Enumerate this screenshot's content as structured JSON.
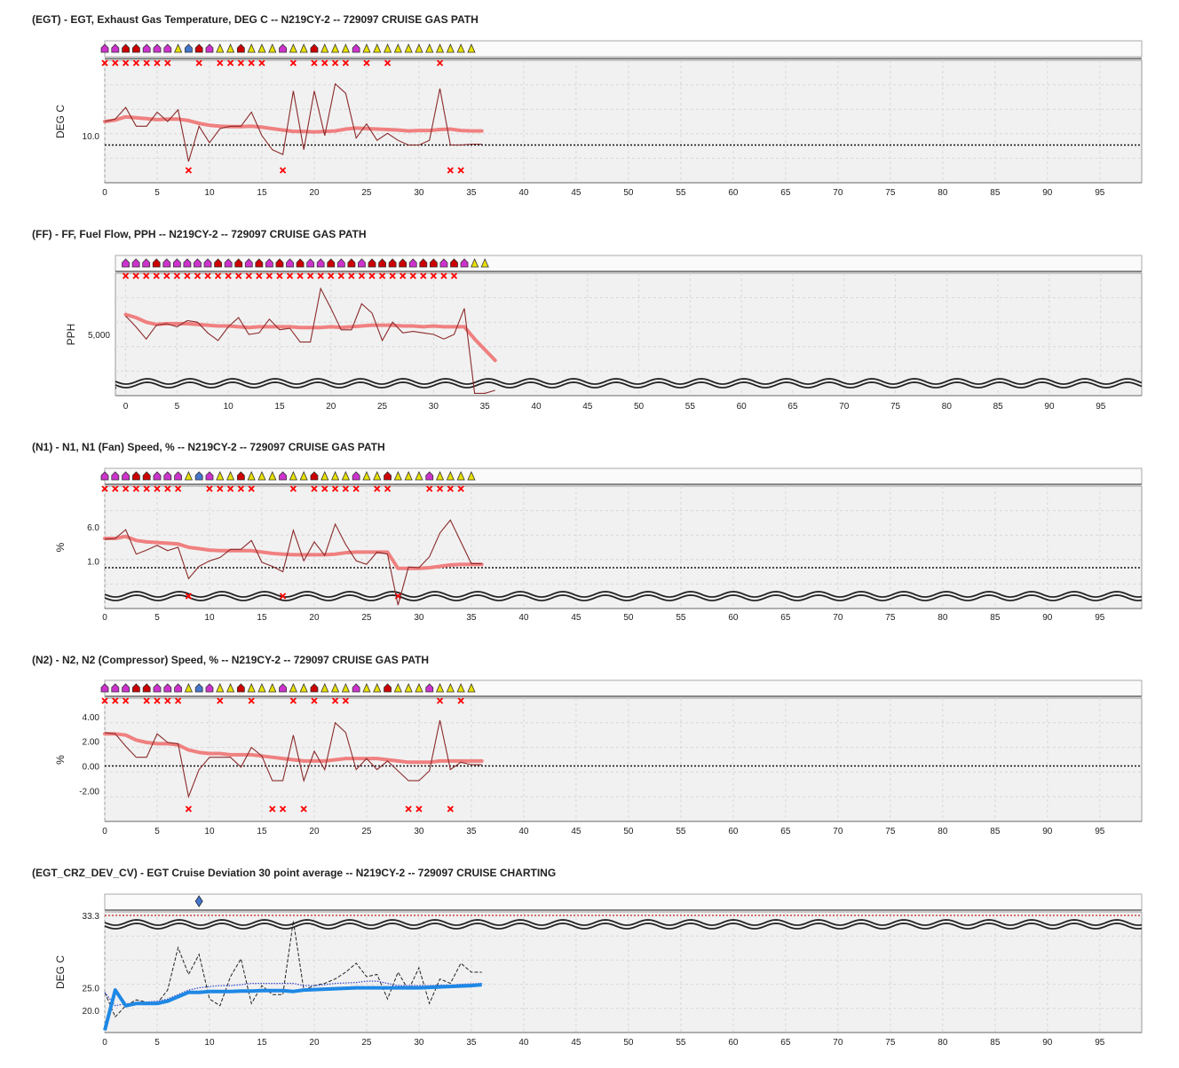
{
  "colors": {
    "trend": "#f08080",
    "raw": "#8b2a2a",
    "flag": "#ff0000",
    "dev_avg": "#1e88e5",
    "dev_dash": "#222222",
    "dev_dot": "#3344cc",
    "grid": "#d8d8d8",
    "plot_bg": "#f1f1f1",
    "marker_magenta": "#cc33cc",
    "marker_red": "#cc0000",
    "marker_yellow": "#e8e000",
    "marker_blue": "#4477cc",
    "marker_teal": "#4aa0a0"
  },
  "chart_data": [
    {
      "id": "egt",
      "type": "line",
      "title": "(EGT) - EGT, Exhaust Gas Temperature, DEG C -- N219CY-2 -- 729097 CRUISE GAS PATH",
      "ylabel": "DEG C",
      "yticks": [
        10.0
      ],
      "ytick_labels": [
        "10.0"
      ],
      "ylim": [
        0,
        26
      ],
      "xlim": [
        0,
        99
      ],
      "xticks": [
        0,
        5,
        10,
        15,
        20,
        25,
        30,
        35,
        40,
        45,
        50,
        55,
        60,
        65,
        70,
        75,
        80,
        85,
        90,
        95
      ],
      "baseline": 8,
      "grid": true,
      "break_bottom": false,
      "markers": [
        "m",
        "m",
        "r",
        "r",
        "m",
        "m",
        "m",
        "y",
        "b",
        "r",
        "m",
        "y",
        "y",
        "r",
        "y",
        "y",
        "y",
        "m",
        "y",
        "y",
        "r",
        "y",
        "y",
        "y",
        "m",
        "y",
        "y",
        "y",
        "y",
        "y",
        "y",
        "y",
        "y",
        "y",
        "y",
        "y"
      ],
      "flags_top": [
        0,
        1,
        2,
        3,
        4,
        5,
        6,
        9,
        11,
        12,
        13,
        14,
        15,
        18,
        20,
        21,
        22,
        23,
        25,
        27,
        32
      ],
      "flags_bottom": [
        8,
        17,
        33,
        34
      ],
      "raw": [
        13,
        13.5,
        16,
        12,
        12,
        15,
        13,
        15.5,
        4.5,
        12,
        8.5,
        11.5,
        12,
        12,
        15,
        10,
        7,
        6,
        19.5,
        7,
        19.5,
        10,
        21,
        19,
        9.5,
        12.5,
        9,
        10.5,
        9,
        8,
        8,
        9,
        20,
        8,
        8,
        8.2,
        8.2
      ],
      "trend": [
        13,
        13.3,
        14,
        13.8,
        13.6,
        13.4,
        13.5,
        13.5,
        13.2,
        12.6,
        12.2,
        12,
        11.9,
        11.9,
        12,
        11.8,
        11.5,
        11.2,
        10.9,
        10.9,
        10.8,
        10.9,
        11,
        11.4,
        11.6,
        11.5,
        11.4,
        11.3,
        11.2,
        11,
        11.1,
        11.1,
        11.3,
        11.4,
        11.1,
        11,
        11
      ]
    },
    {
      "id": "ff",
      "type": "line",
      "title": "(FF) - FF, Fuel Flow, PPH -- N219CY-2 -- 729097 CRUISE GAS PATH",
      "ylabel": "PPH",
      "yticks": [
        5000
      ],
      "ytick_labels": [
        "5,000"
      ],
      "ylim": [
        1000,
        9000
      ],
      "xlim": [
        -1,
        99
      ],
      "xticks": [
        0,
        5,
        10,
        15,
        20,
        25,
        30,
        35,
        40,
        45,
        50,
        55,
        60,
        65,
        70,
        75,
        80,
        85,
        90,
        95
      ],
      "baseline": 1500,
      "grid": true,
      "break_bottom": true,
      "markers": [
        "m",
        "m",
        "m",
        "r",
        "m",
        "m",
        "m",
        "m",
        "m",
        "r",
        "m",
        "r",
        "m",
        "r",
        "m",
        "r",
        "m",
        "r",
        "m",
        "m",
        "r",
        "m",
        "r",
        "m",
        "r",
        "r",
        "r",
        "r",
        "m",
        "r",
        "r",
        "m",
        "r",
        "m",
        "y",
        "y"
      ],
      "flags_top": [
        0,
        1,
        2,
        3,
        4,
        5,
        6,
        7,
        8,
        9,
        10,
        11,
        12,
        13,
        14,
        15,
        16,
        17,
        18,
        19,
        20,
        21,
        22,
        23,
        24,
        25,
        26,
        27,
        28,
        29,
        30,
        31,
        32
      ],
      "flags_bottom": [],
      "raw": [
        6200,
        5500,
        4700,
        5600,
        5700,
        5500,
        5900,
        5800,
        5100,
        4600,
        5500,
        6100,
        5000,
        5100,
        6000,
        5300,
        5400,
        4500,
        4500,
        8000,
        6700,
        5300,
        5300,
        7000,
        6400,
        4600,
        5800,
        5100,
        5200,
        5100,
        5000,
        4700,
        5000,
        6700,
        1150,
        1150,
        1350
      ],
      "trend": [
        6300,
        6100,
        5800,
        5650,
        5700,
        5700,
        5700,
        5650,
        5600,
        5550,
        5550,
        5500,
        5450,
        5500,
        5500,
        5500,
        5500,
        5450,
        5450,
        5450,
        5500,
        5450,
        5500,
        5550,
        5600,
        5600,
        5600,
        5550,
        5550,
        5500,
        5550,
        5500,
        5500,
        5500,
        4700,
        4000,
        3300
      ]
    },
    {
      "id": "n1",
      "type": "line",
      "title": "(N1) - N1, N1 (Fan) Speed, % -- N219CY-2 -- 729097 CRUISE GAS PATH",
      "ylabel": "%",
      "yticks": [
        1.0,
        6.0
      ],
      "ytick_labels": [
        "1.0",
        "6.0"
      ],
      "ylim": [
        -6,
        12
      ],
      "xlim": [
        0,
        99
      ],
      "xticks": [
        0,
        5,
        10,
        15,
        20,
        25,
        30,
        35,
        40,
        45,
        50,
        55,
        60,
        65,
        70,
        75,
        80,
        85,
        90,
        95
      ],
      "baseline": 0,
      "grid": true,
      "break_bottom": true,
      "markers": [
        "m",
        "m",
        "m",
        "r",
        "r",
        "m",
        "m",
        "m",
        "y",
        "b",
        "m",
        "y",
        "y",
        "r",
        "y",
        "y",
        "y",
        "m",
        "y",
        "y",
        "r",
        "y",
        "y",
        "y",
        "m",
        "y",
        "y",
        "r",
        "y",
        "y",
        "y",
        "m",
        "y",
        "y",
        "y",
        "y"
      ],
      "flags_top": [
        0,
        1,
        2,
        3,
        4,
        5,
        6,
        7,
        10,
        11,
        12,
        13,
        14,
        18,
        20,
        21,
        22,
        23,
        24,
        26,
        27,
        31,
        32,
        33,
        34
      ],
      "flags_bottom": [
        8,
        17,
        28
      ],
      "raw": [
        4.2,
        4.3,
        5.6,
        2,
        2.6,
        3.3,
        2.5,
        3,
        -1.6,
        0.2,
        1,
        1.5,
        2.7,
        2.7,
        4,
        0.8,
        0.2,
        -0.6,
        5.5,
        1,
        3.8,
        1.8,
        6.4,
        3.4,
        1,
        0.5,
        2.3,
        2,
        -5.5,
        0.1,
        0,
        1.6,
        5.1,
        7,
        3.8,
        0.6,
        0.6
      ],
      "trend": [
        4.3,
        4.3,
        4.6,
        4,
        3.8,
        3.7,
        3.6,
        3.5,
        3,
        2.8,
        2.6,
        2.5,
        2.5,
        2.5,
        2.5,
        2.3,
        2.1,
        2,
        1.9,
        1.9,
        1.9,
        1.9,
        2,
        2.2,
        2.3,
        2.3,
        2.3,
        2.3,
        -0.1,
        -0.1,
        -0.1,
        0,
        0.2,
        0.4,
        0.5,
        0.5,
        0.5
      ]
    },
    {
      "id": "n2",
      "type": "line",
      "title": "(N2) - N2, N2 (Compressor) Speed, % -- N219CY-2 -- 729097 CRUISE GAS PATH",
      "ylabel": "%",
      "yticks": [
        -2.0,
        0.0,
        2.0,
        4.0
      ],
      "ytick_labels": [
        "-2.00",
        "0.00",
        "2.00",
        "4.00"
      ],
      "ylim": [
        -4.5,
        5.5
      ],
      "xlim": [
        0,
        99
      ],
      "xticks": [
        0,
        5,
        10,
        15,
        20,
        25,
        30,
        35,
        40,
        45,
        50,
        55,
        60,
        65,
        70,
        75,
        80,
        85,
        90,
        95
      ],
      "baseline": 0,
      "grid": true,
      "break_bottom": false,
      "markers": [
        "m",
        "m",
        "m",
        "r",
        "r",
        "m",
        "m",
        "m",
        "y",
        "b",
        "m",
        "y",
        "y",
        "r",
        "y",
        "y",
        "y",
        "m",
        "y",
        "y",
        "r",
        "y",
        "y",
        "y",
        "m",
        "y",
        "y",
        "r",
        "y",
        "y",
        "y",
        "m",
        "y",
        "y",
        "y",
        "y"
      ],
      "flags_top": [
        0,
        1,
        2,
        4,
        5,
        6,
        7,
        11,
        14,
        18,
        20,
        22,
        23,
        32,
        34
      ],
      "flags_bottom": [
        8,
        16,
        17,
        19,
        29,
        30,
        33
      ],
      "raw": [
        2.7,
        2.6,
        1.6,
        0.7,
        0.7,
        2.6,
        1.9,
        1.8,
        -2.5,
        -0.3,
        0.7,
        0.7,
        0.7,
        -0.1,
        1.5,
        0.8,
        -1.2,
        -1.2,
        2.5,
        -1.2,
        1.2,
        -0.3,
        3.5,
        2.7,
        -0.3,
        0.6,
        -0.3,
        0.4,
        -0.4,
        -1.2,
        -1.2,
        -0.4,
        3.7,
        -0.3,
        0.3,
        0.1,
        0.1
      ],
      "trend": [
        2.6,
        2.6,
        2.5,
        2.1,
        1.9,
        1.8,
        1.8,
        1.7,
        1.3,
        1.1,
        1,
        1,
        0.9,
        0.9,
        0.9,
        0.8,
        0.7,
        0.6,
        0.5,
        0.4,
        0.4,
        0.4,
        0.5,
        0.6,
        0.6,
        0.6,
        0.6,
        0.5,
        0.4,
        0.3,
        0.3,
        0.3,
        0.4,
        0.4,
        0.4,
        0.4,
        0.4
      ]
    },
    {
      "id": "egt_dev",
      "type": "line",
      "title": "(EGT_CRZ_DEV_CV) - EGT Cruise Deviation 30 point average --  N219CY-2 -- 729097 CRUISE CHARTING",
      "ylabel": "DEG C",
      "yticks": [
        20.0,
        25.0
      ],
      "ytick_labels": [
        "20.0",
        "25.0"
      ],
      "ylim": [
        15,
        42
      ],
      "xlim": [
        0,
        99
      ],
      "xticks": [
        0,
        5,
        10,
        15,
        20,
        25,
        30,
        35,
        40,
        45,
        50,
        55,
        60,
        65,
        70,
        75,
        80,
        85,
        90,
        95
      ],
      "baseline": null,
      "grid": true,
      "break_top": true,
      "top_tick_label": "33.3",
      "diamond_at": 9,
      "dashed": [
        24,
        18.5,
        21,
        22.3,
        21.8,
        21.5,
        24.5,
        34,
        28,
        32.5,
        22.5,
        21,
        27.5,
        31.5,
        21.5,
        25.5,
        23.5,
        23.5,
        40,
        24.5,
        25.5,
        26,
        27,
        28.5,
        30.5,
        27.5,
        28,
        22.5,
        28.5,
        24.5,
        29.5,
        21.5,
        27,
        26,
        30.5,
        28.5,
        28.5
      ],
      "dotted": [
        24,
        21,
        21.5,
        21.5,
        21.8,
        22,
        22.5,
        23.5,
        24.5,
        25,
        25.3,
        25.5,
        25.5,
        25.7,
        26,
        26,
        26,
        26,
        26,
        25.5,
        25.5,
        25.7,
        26,
        26.1,
        26.2,
        26.5,
        26.5,
        26,
        25.5,
        25.5,
        25.5,
        25.5,
        25.6,
        25.6,
        25.8,
        25.9,
        26
      ],
      "average": [
        15.5,
        24.5,
        21,
        21.5,
        21.5,
        21.5,
        22,
        23,
        24,
        24,
        24.2,
        24.2,
        24.2,
        24.3,
        24.3,
        24.4,
        24.4,
        24.4,
        24.2,
        24.5,
        24.6,
        24.7,
        24.8,
        24.9,
        25,
        25,
        25,
        25,
        25,
        25,
        25,
        25.1,
        25.2,
        25.3,
        25.4,
        25.5,
        25.7
      ]
    }
  ]
}
